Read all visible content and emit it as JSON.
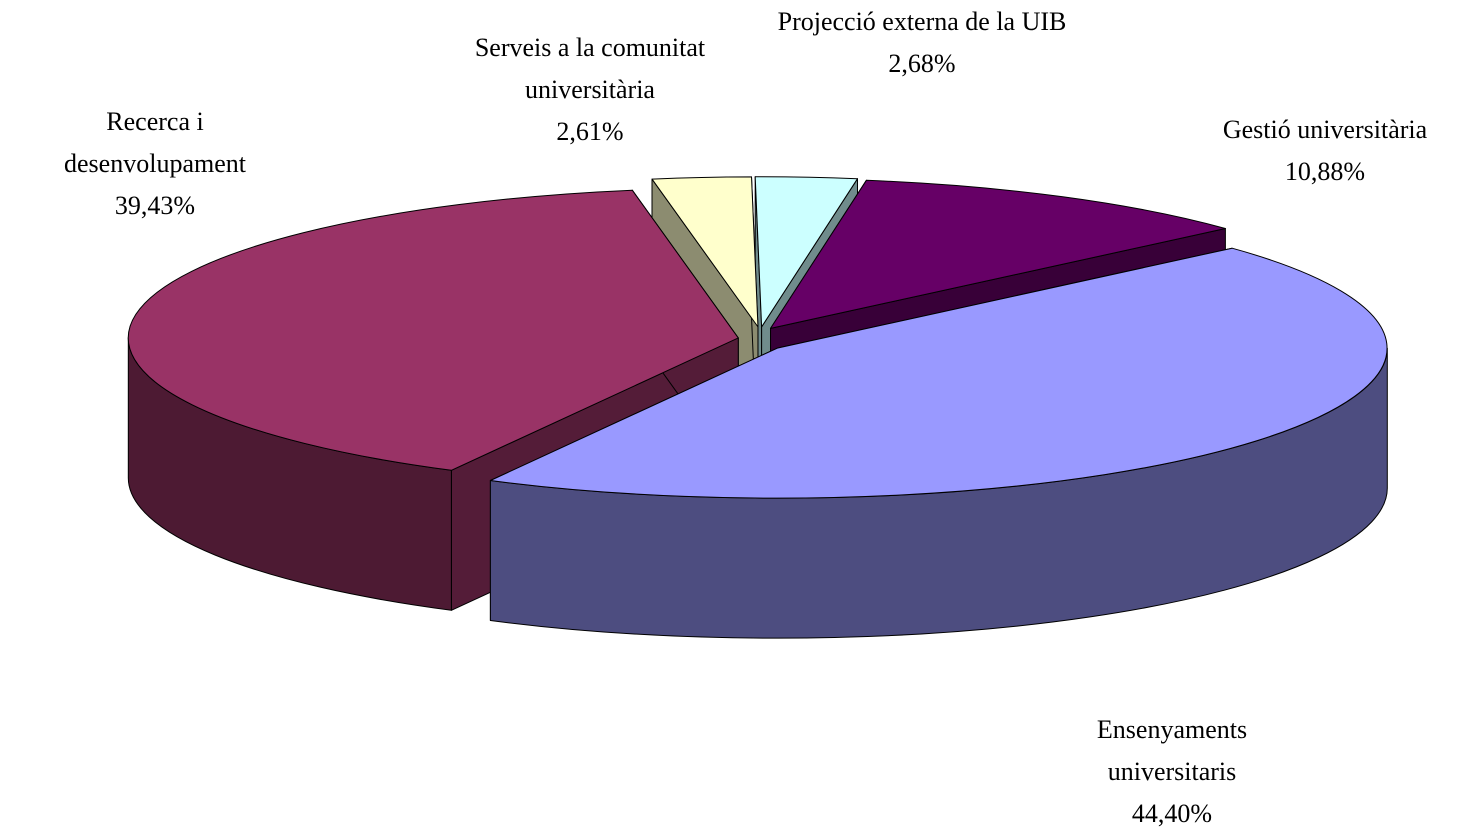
{
  "chart_data": {
    "type": "pie3d",
    "categories": [
      "Serveis a la comunitat universitària",
      "Projecció externa de la UIB",
      "Gestió universitària",
      "Ensenyaments universitaris",
      "Recerca i desenvolupament"
    ],
    "values": [
      2.61,
      2.68,
      10.88,
      44.4,
      39.43
    ],
    "value_labels": [
      "2,61%",
      "2,68%",
      "10,88%",
      "44,40%",
      "39,43%"
    ],
    "colors": [
      "#ffffcc",
      "#ccffff",
      "#660066",
      "#9999ff",
      "#993366"
    ]
  }
}
